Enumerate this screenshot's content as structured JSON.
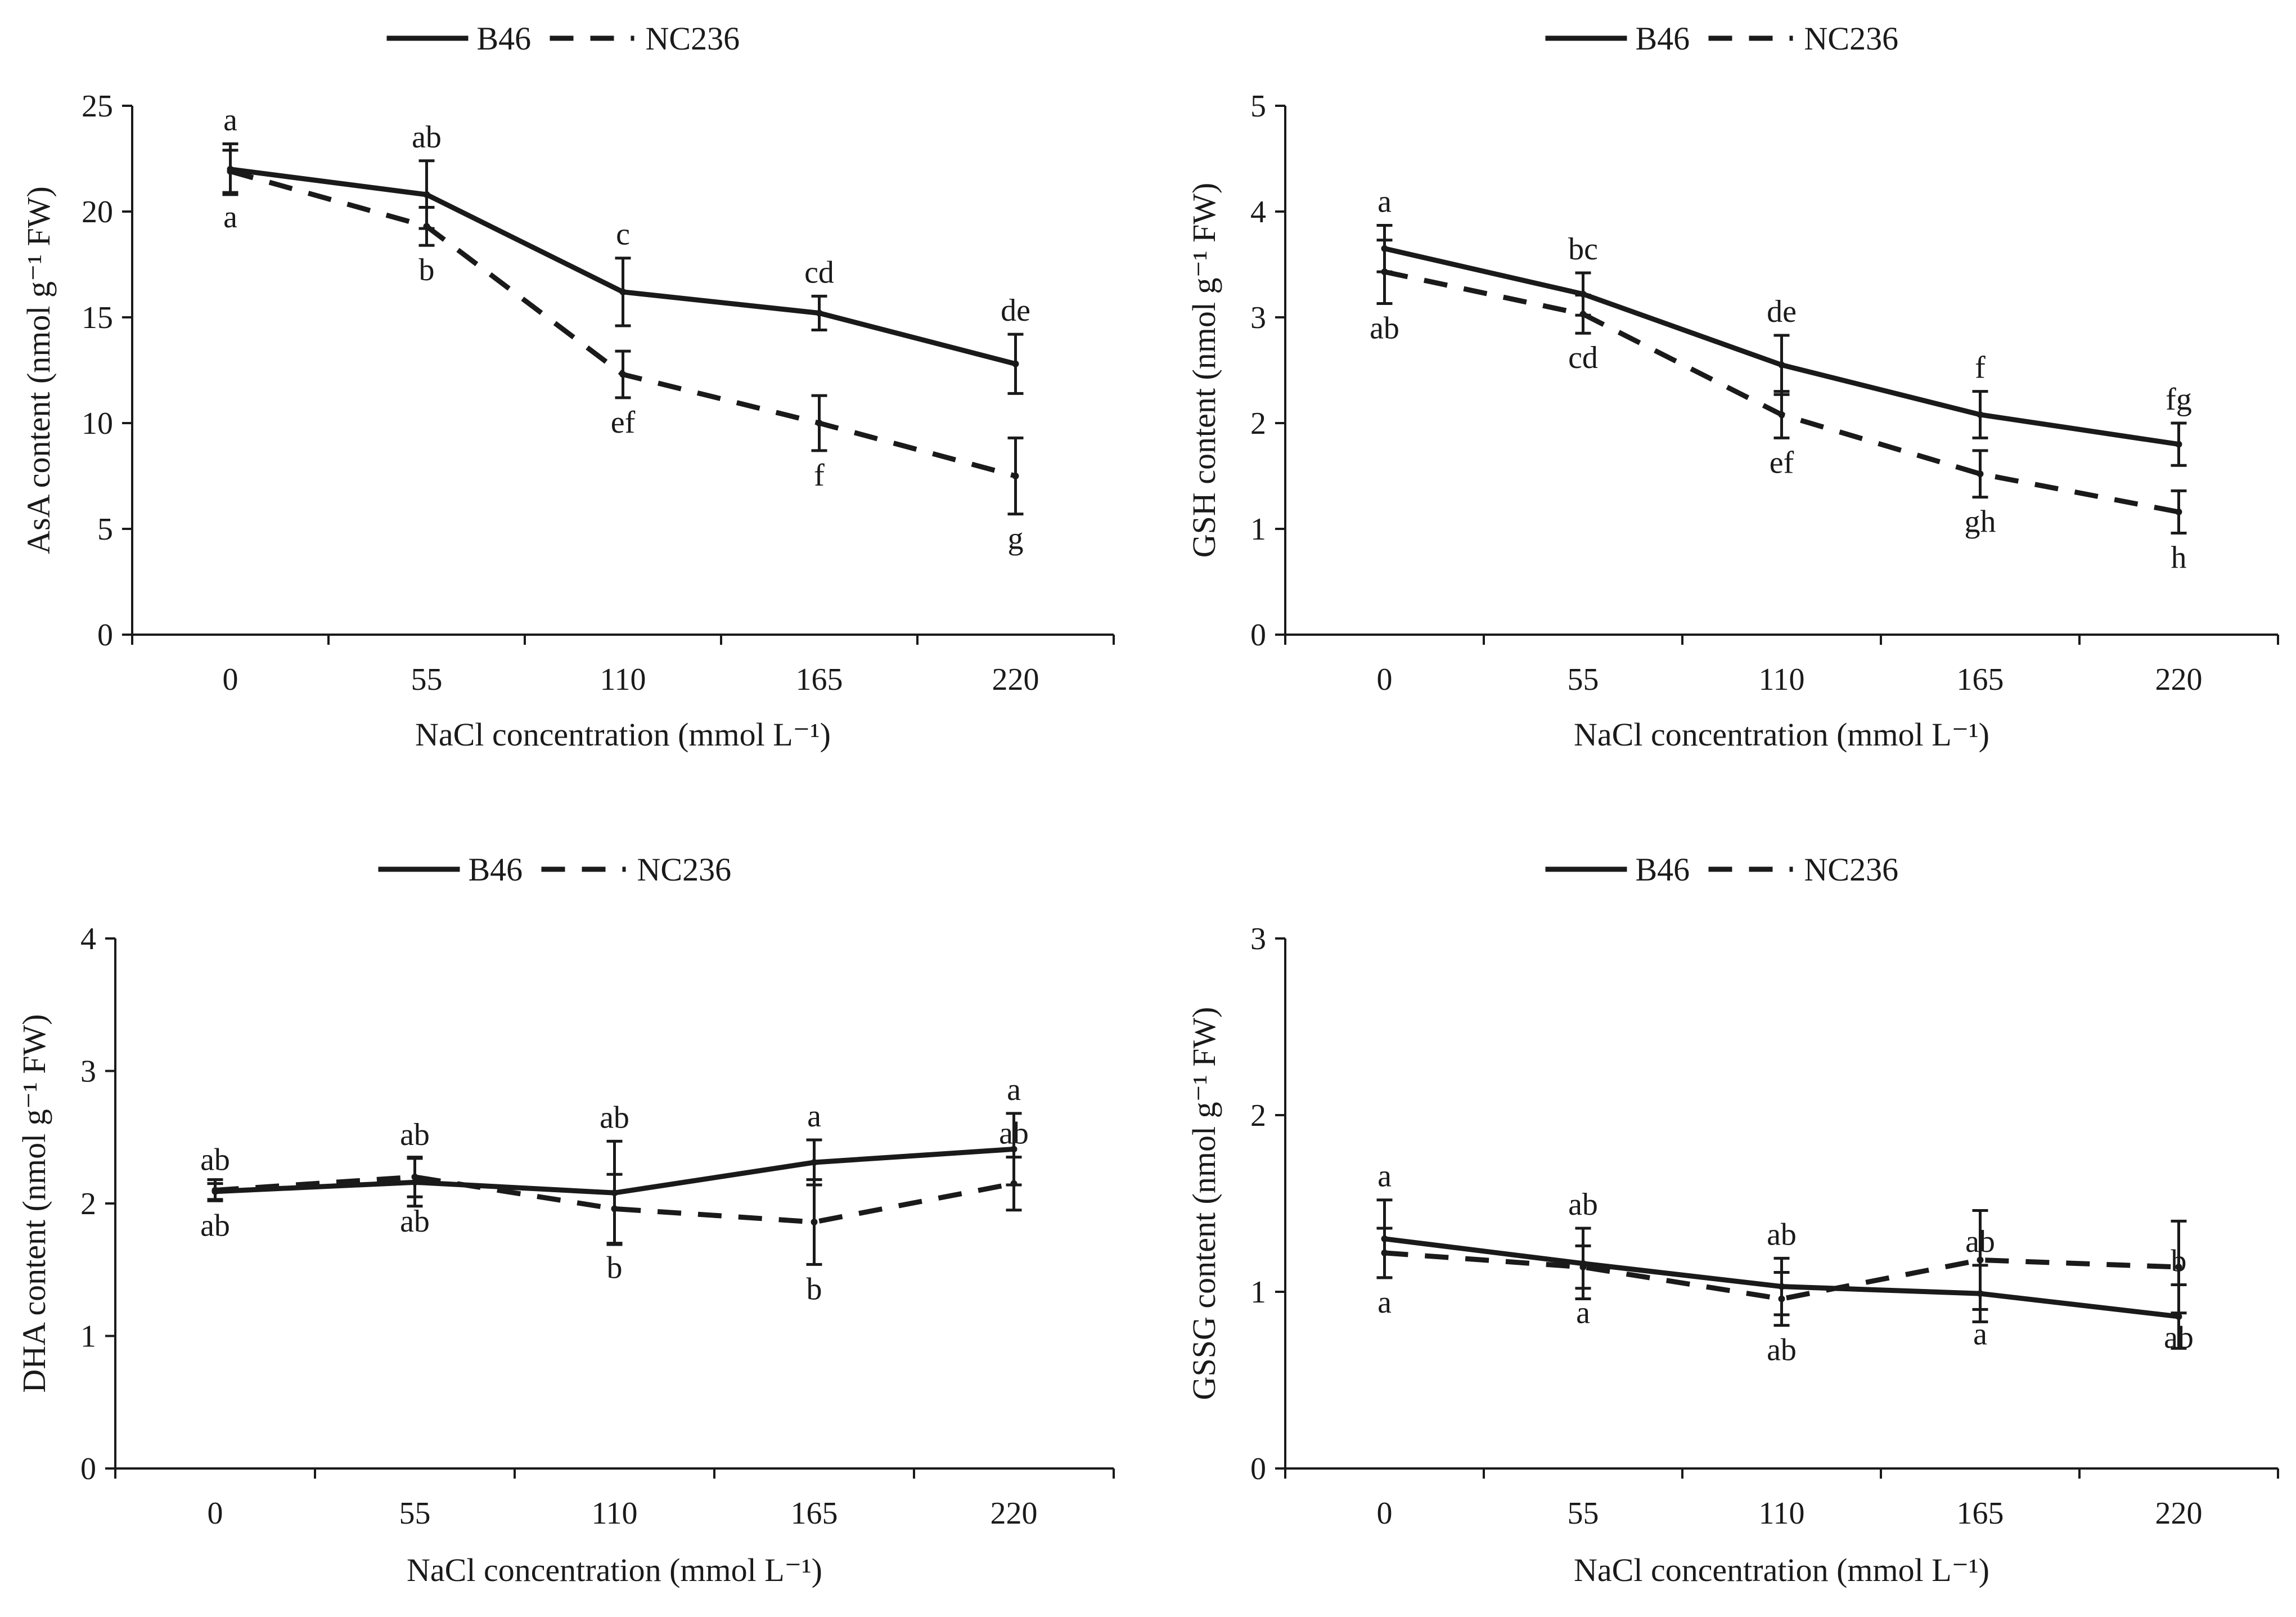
{
  "legend": {
    "series1": "B46",
    "series2": "NC236"
  },
  "chart_data": [
    {
      "type": "line",
      "title": "",
      "xlabel": "NaCl concentration (mmol L⁻¹)",
      "ylabel": "AsA content (nmol g⁻¹ FW)",
      "categories": [
        "0",
        "55",
        "110",
        "165",
        "220"
      ],
      "ylim": [
        0,
        25
      ],
      "yticks": [
        0,
        5,
        10,
        15,
        20,
        25
      ],
      "legend_position": "top-center",
      "series": [
        {
          "name": "B46",
          "style": "solid",
          "values": [
            22.0,
            20.8,
            16.2,
            15.2,
            12.8
          ],
          "errors": [
            1.2,
            1.6,
            1.6,
            0.8,
            1.4
          ],
          "letters": [
            "a",
            "ab",
            "c",
            "cd",
            "de"
          ]
        },
        {
          "name": "NC236",
          "style": "dashed",
          "values": [
            21.9,
            19.3,
            12.3,
            10.0,
            7.5
          ],
          "errors": [
            1.0,
            0.9,
            1.1,
            1.3,
            1.8
          ],
          "letters": [
            "a",
            "b",
            "ef",
            "f",
            "g"
          ]
        }
      ]
    },
    {
      "type": "line",
      "title": "",
      "xlabel": "NaCl concentration (mmol L⁻¹)",
      "ylabel": "GSH content (nmol g⁻¹ FW)",
      "categories": [
        "0",
        "55",
        "110",
        "165",
        "220"
      ],
      "ylim": [
        0,
        5
      ],
      "yticks": [
        0,
        1,
        2,
        3,
        4,
        5
      ],
      "legend_position": "top-center",
      "series": [
        {
          "name": "B46",
          "style": "solid",
          "values": [
            3.65,
            3.22,
            2.55,
            2.08,
            1.8
          ],
          "errors": [
            0.22,
            0.2,
            0.28,
            0.22,
            0.2
          ],
          "letters": [
            "a",
            "bc",
            "de",
            "f",
            "fg"
          ]
        },
        {
          "name": "NC236",
          "style": "dashed",
          "values": [
            3.43,
            3.03,
            2.08,
            1.52,
            1.16
          ],
          "errors": [
            0.3,
            0.18,
            0.22,
            0.22,
            0.2
          ],
          "letters": [
            "ab",
            "cd",
            "ef",
            "gh",
            "h"
          ]
        }
      ]
    },
    {
      "type": "line",
      "title": "",
      "xlabel": "NaCl concentration (mmol L⁻¹)",
      "ylabel": "DHA content (nmol g⁻¹ FW)",
      "categories": [
        "0",
        "55",
        "110",
        "165",
        "220"
      ],
      "ylim": [
        0,
        4
      ],
      "yticks": [
        0,
        1,
        2,
        3,
        4
      ],
      "legend_position": "top-center",
      "series": [
        {
          "name": "B46",
          "style": "solid",
          "values": [
            2.09,
            2.16,
            2.08,
            2.31,
            2.41
          ],
          "errors": [
            0.06,
            0.18,
            0.39,
            0.17,
            0.27
          ],
          "letters": [
            "ab",
            "ab",
            "ab",
            "a",
            "a"
          ]
        },
        {
          "name": "NC236",
          "style": "dashed",
          "values": [
            2.1,
            2.2,
            1.96,
            1.86,
            2.15
          ],
          "errors": [
            0.08,
            0.15,
            0.26,
            0.32,
            0.2
          ],
          "letters": [
            "ab",
            "ab",
            "b",
            "b",
            "ab"
          ]
        }
      ]
    },
    {
      "type": "line",
      "title": "",
      "xlabel": "NaCl concentration (mmol L⁻¹)",
      "ylabel": "GSSG content (nmol g⁻¹ FW)",
      "categories": [
        "0",
        "55",
        "110",
        "165",
        "220"
      ],
      "ylim": [
        0,
        3
      ],
      "yticks": [
        0,
        1,
        2,
        3
      ],
      "legend_position": "top-center",
      "series": [
        {
          "name": "B46",
          "style": "solid",
          "values": [
            1.3,
            1.16,
            1.03,
            0.99,
            0.86
          ],
          "errors": [
            0.22,
            0.2,
            0.16,
            0.16,
            0.18
          ],
          "letters": [
            "a",
            "ab",
            "ab",
            "ab",
            "b"
          ]
        },
        {
          "name": "NC236",
          "style": "dashed",
          "values": [
            1.22,
            1.14,
            0.96,
            1.18,
            1.14
          ],
          "errors": [
            0.14,
            0.12,
            0.15,
            0.28,
            0.26
          ],
          "letters": [
            "a",
            "a",
            "ab",
            "a",
            "ab"
          ]
        }
      ]
    }
  ]
}
